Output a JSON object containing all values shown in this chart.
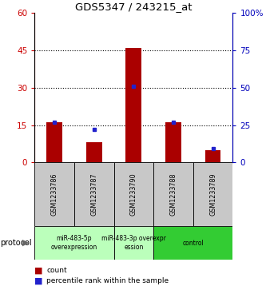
{
  "title": "GDS5347 / 243215_at",
  "samples": [
    "GSM1233786",
    "GSM1233787",
    "GSM1233790",
    "GSM1233788",
    "GSM1233789"
  ],
  "counts": [
    16,
    8,
    46,
    16,
    5
  ],
  "percentiles": [
    27,
    22,
    51,
    27,
    9
  ],
  "ylim_left": [
    0,
    60
  ],
  "ylim_right": [
    0,
    100
  ],
  "yticks_left": [
    0,
    15,
    30,
    45,
    60
  ],
  "yticks_right": [
    0,
    25,
    50,
    75,
    100
  ],
  "ytick_right_labels": [
    "0",
    "25",
    "50",
    "75",
    "100%"
  ],
  "bar_color": "#AA0000",
  "dot_color": "#2222CC",
  "left_axis_color": "#CC0000",
  "right_axis_color": "#0000BB",
  "sample_box_color": "#C8C8C8",
  "prot_colors": [
    "#BBFFBB",
    "#BBFFBB",
    "#33CC33"
  ],
  "protocol_labels": [
    "miR-483-5p\noverexpression",
    "miR-483-3p overexpr\nession",
    "control"
  ],
  "group_starts": [
    0,
    2,
    3
  ],
  "group_ends": [
    2,
    3,
    5
  ],
  "legend_count_color": "#AA0000",
  "legend_pct_color": "#2222CC",
  "bar_width": 0.4
}
